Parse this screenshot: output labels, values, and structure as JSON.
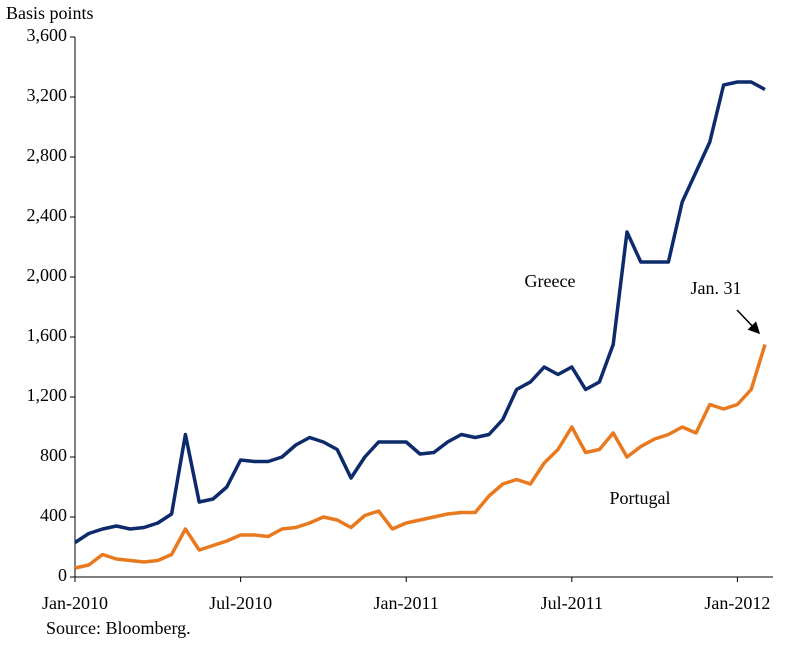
{
  "chart_data": {
    "type": "line",
    "y_label": "Basis points",
    "source": "Source: Bloomberg.",
    "annotations": [
      "Greece",
      "Portugal",
      "Jan. 31"
    ],
    "categories": [
      "Jan-2010",
      null,
      null,
      null,
      null,
      null,
      null,
      null,
      null,
      null,
      null,
      null,
      "Jul-2010",
      null,
      null,
      null,
      null,
      null,
      null,
      null,
      null,
      null,
      null,
      null,
      "Jan-2011",
      null,
      null,
      null,
      null,
      null,
      null,
      null,
      null,
      null,
      null,
      null,
      "Jul-2011",
      null,
      null,
      null,
      null,
      null,
      null,
      null,
      null,
      null,
      null,
      null,
      "Jan-2012",
      null,
      null
    ],
    "series": [
      {
        "name": "Greece",
        "color": "#0d2a6b",
        "values": [
          230,
          290,
          320,
          340,
          320,
          330,
          360,
          420,
          950,
          500,
          520,
          600,
          780,
          770,
          770,
          800,
          880,
          930,
          900,
          850,
          660,
          800,
          900,
          900,
          900,
          820,
          830,
          900,
          950,
          930,
          950,
          1050,
          1250,
          1300,
          1400,
          1350,
          1400,
          1250,
          1300,
          1550,
          2300,
          2100,
          2100,
          2100,
          2500,
          2700,
          2900,
          3280,
          3300,
          3300,
          3250
        ]
      },
      {
        "name": "Portugal",
        "color": "#e8791e",
        "values": [
          60,
          80,
          150,
          120,
          110,
          100,
          110,
          150,
          320,
          180,
          210,
          240,
          280,
          280,
          270,
          320,
          330,
          360,
          400,
          380,
          330,
          410,
          440,
          320,
          360,
          380,
          400,
          420,
          430,
          430,
          540,
          620,
          650,
          620,
          760,
          850,
          1000,
          830,
          850,
          960,
          800,
          870,
          920,
          950,
          1000,
          960,
          1150,
          1120,
          1150,
          1250,
          1550
        ]
      }
    ],
    "ylim": [
      0,
      3600
    ],
    "yticks": [
      0,
      400,
      800,
      {
        "value": 1200,
        "label": "1,200"
      },
      {
        "value": 1600,
        "label": "1,600"
      },
      {
        "value": 2000,
        "label": "2,000"
      },
      {
        "value": 2400,
        "label": "2,400"
      },
      {
        "value": 2800,
        "label": "2,800"
      },
      {
        "value": 3200,
        "label": "3,200"
      },
      {
        "value": 3600,
        "label": "3,600"
      }
    ]
  }
}
